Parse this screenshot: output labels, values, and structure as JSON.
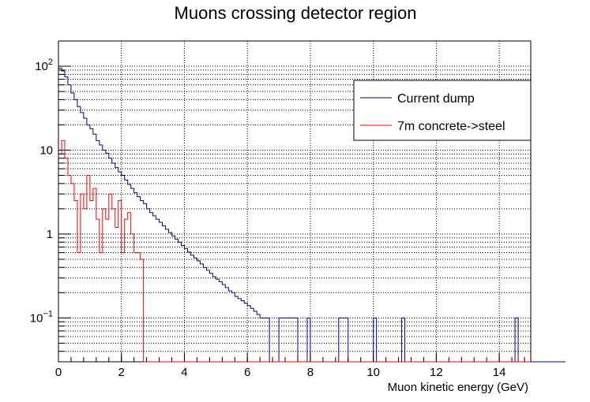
{
  "chart_data": {
    "type": "line",
    "step": true,
    "log_y": true,
    "title": "Muons crossing detector region",
    "xlabel": "Muon kinetic energy (GeV)",
    "ylabel": "",
    "xlim": [
      0,
      15
    ],
    "ylim": [
      0.03,
      200
    ],
    "grid": true,
    "legend_position": "top-right",
    "x_ticks": [
      0,
      2,
      4,
      6,
      8,
      10,
      12,
      14
    ],
    "y_tick_labels": [
      {
        "value": 0.1,
        "base": "10",
        "exp": "−1"
      },
      {
        "value": 1,
        "text": "1"
      },
      {
        "value": 10,
        "text": "10"
      },
      {
        "value": 100,
        "base": "10",
        "exp": "2"
      }
    ],
    "bin_width": 0.1,
    "series": [
      {
        "name": "Current dump",
        "color": "#000099",
        "values": [
          95,
          88,
          75,
          60,
          48,
          40,
          33,
          28,
          24,
          20,
          18,
          15.5,
          13,
          11.5,
          10,
          9.2,
          8,
          7,
          6.2,
          5.5,
          5.0,
          4.4,
          3.9,
          3.5,
          3.1,
          2.8,
          2.5,
          2.3,
          2.0,
          1.8,
          1.65,
          1.5,
          1.38,
          1.25,
          1.14,
          1.04,
          0.95,
          0.87,
          0.8,
          0.73,
          0.67,
          0.61,
          0.56,
          0.52,
          0.48,
          0.44,
          0.4,
          0.37,
          0.34,
          0.31,
          0.29,
          0.27,
          0.25,
          0.23,
          0.21,
          0.2,
          0.18,
          0.17,
          0.16,
          0.15,
          0.14,
          0.13,
          0.12,
          0.11,
          0.1,
          0.1,
          0.1,
          0,
          0,
          0,
          0.1,
          0.1,
          0.1,
          0.1,
          0.1,
          0.1,
          0,
          0,
          0,
          0.1,
          0,
          0,
          0,
          0,
          0,
          0,
          0,
          0,
          0,
          0.1,
          0.1,
          0.1,
          0,
          0,
          0,
          0,
          0,
          0,
          0,
          0,
          0.1,
          0,
          0,
          0,
          0,
          0,
          0,
          0,
          0,
          0.1,
          0,
          0,
          0,
          0,
          0,
          0,
          0,
          0,
          0,
          0,
          0,
          0,
          0,
          0,
          0,
          0,
          0,
          0,
          0,
          0,
          0,
          0,
          0,
          0,
          0,
          0,
          0,
          0,
          0,
          0,
          0,
          0,
          0,
          0,
          0,
          0.1,
          0,
          0,
          0,
          0,
          0,
          0,
          0,
          0,
          0,
          0,
          0,
          0,
          0,
          0,
          0
        ]
      },
      {
        "name": "7m concrete->steel",
        "color": "#ff0000",
        "values": [
          9,
          13,
          8,
          5,
          4,
          2.5,
          0.6,
          3,
          2,
          5,
          2.5,
          3.5,
          1.5,
          0.6,
          2,
          1.5,
          3,
          2,
          1.2,
          2.5,
          0.6,
          1.5,
          1.8,
          1,
          0.6,
          0.6,
          0.5,
          0,
          0,
          0,
          0,
          0,
          0,
          0,
          0,
          0,
          0,
          0,
          0,
          0,
          0,
          0,
          0,
          0,
          0,
          0,
          0,
          0,
          0,
          0,
          0,
          0,
          0,
          0,
          0,
          0,
          0,
          0,
          0,
          0,
          0,
          0,
          0,
          0,
          0,
          0,
          0,
          0,
          0,
          0,
          0,
          0,
          0,
          0,
          0,
          0,
          0,
          0,
          0,
          0,
          0,
          0,
          0,
          0,
          0,
          0,
          0,
          0,
          0,
          0,
          0,
          0,
          0,
          0,
          0,
          0,
          0,
          0,
          0,
          0,
          0,
          0,
          0,
          0,
          0,
          0,
          0,
          0,
          0,
          0,
          0,
          0,
          0,
          0,
          0,
          0,
          0,
          0,
          0,
          0,
          0,
          0,
          0,
          0,
          0,
          0,
          0,
          0,
          0,
          0,
          0,
          0,
          0,
          0,
          0,
          0,
          0,
          0,
          0,
          0,
          0,
          0,
          0,
          0,
          0,
          0,
          0,
          0,
          0,
          0
        ]
      }
    ]
  }
}
